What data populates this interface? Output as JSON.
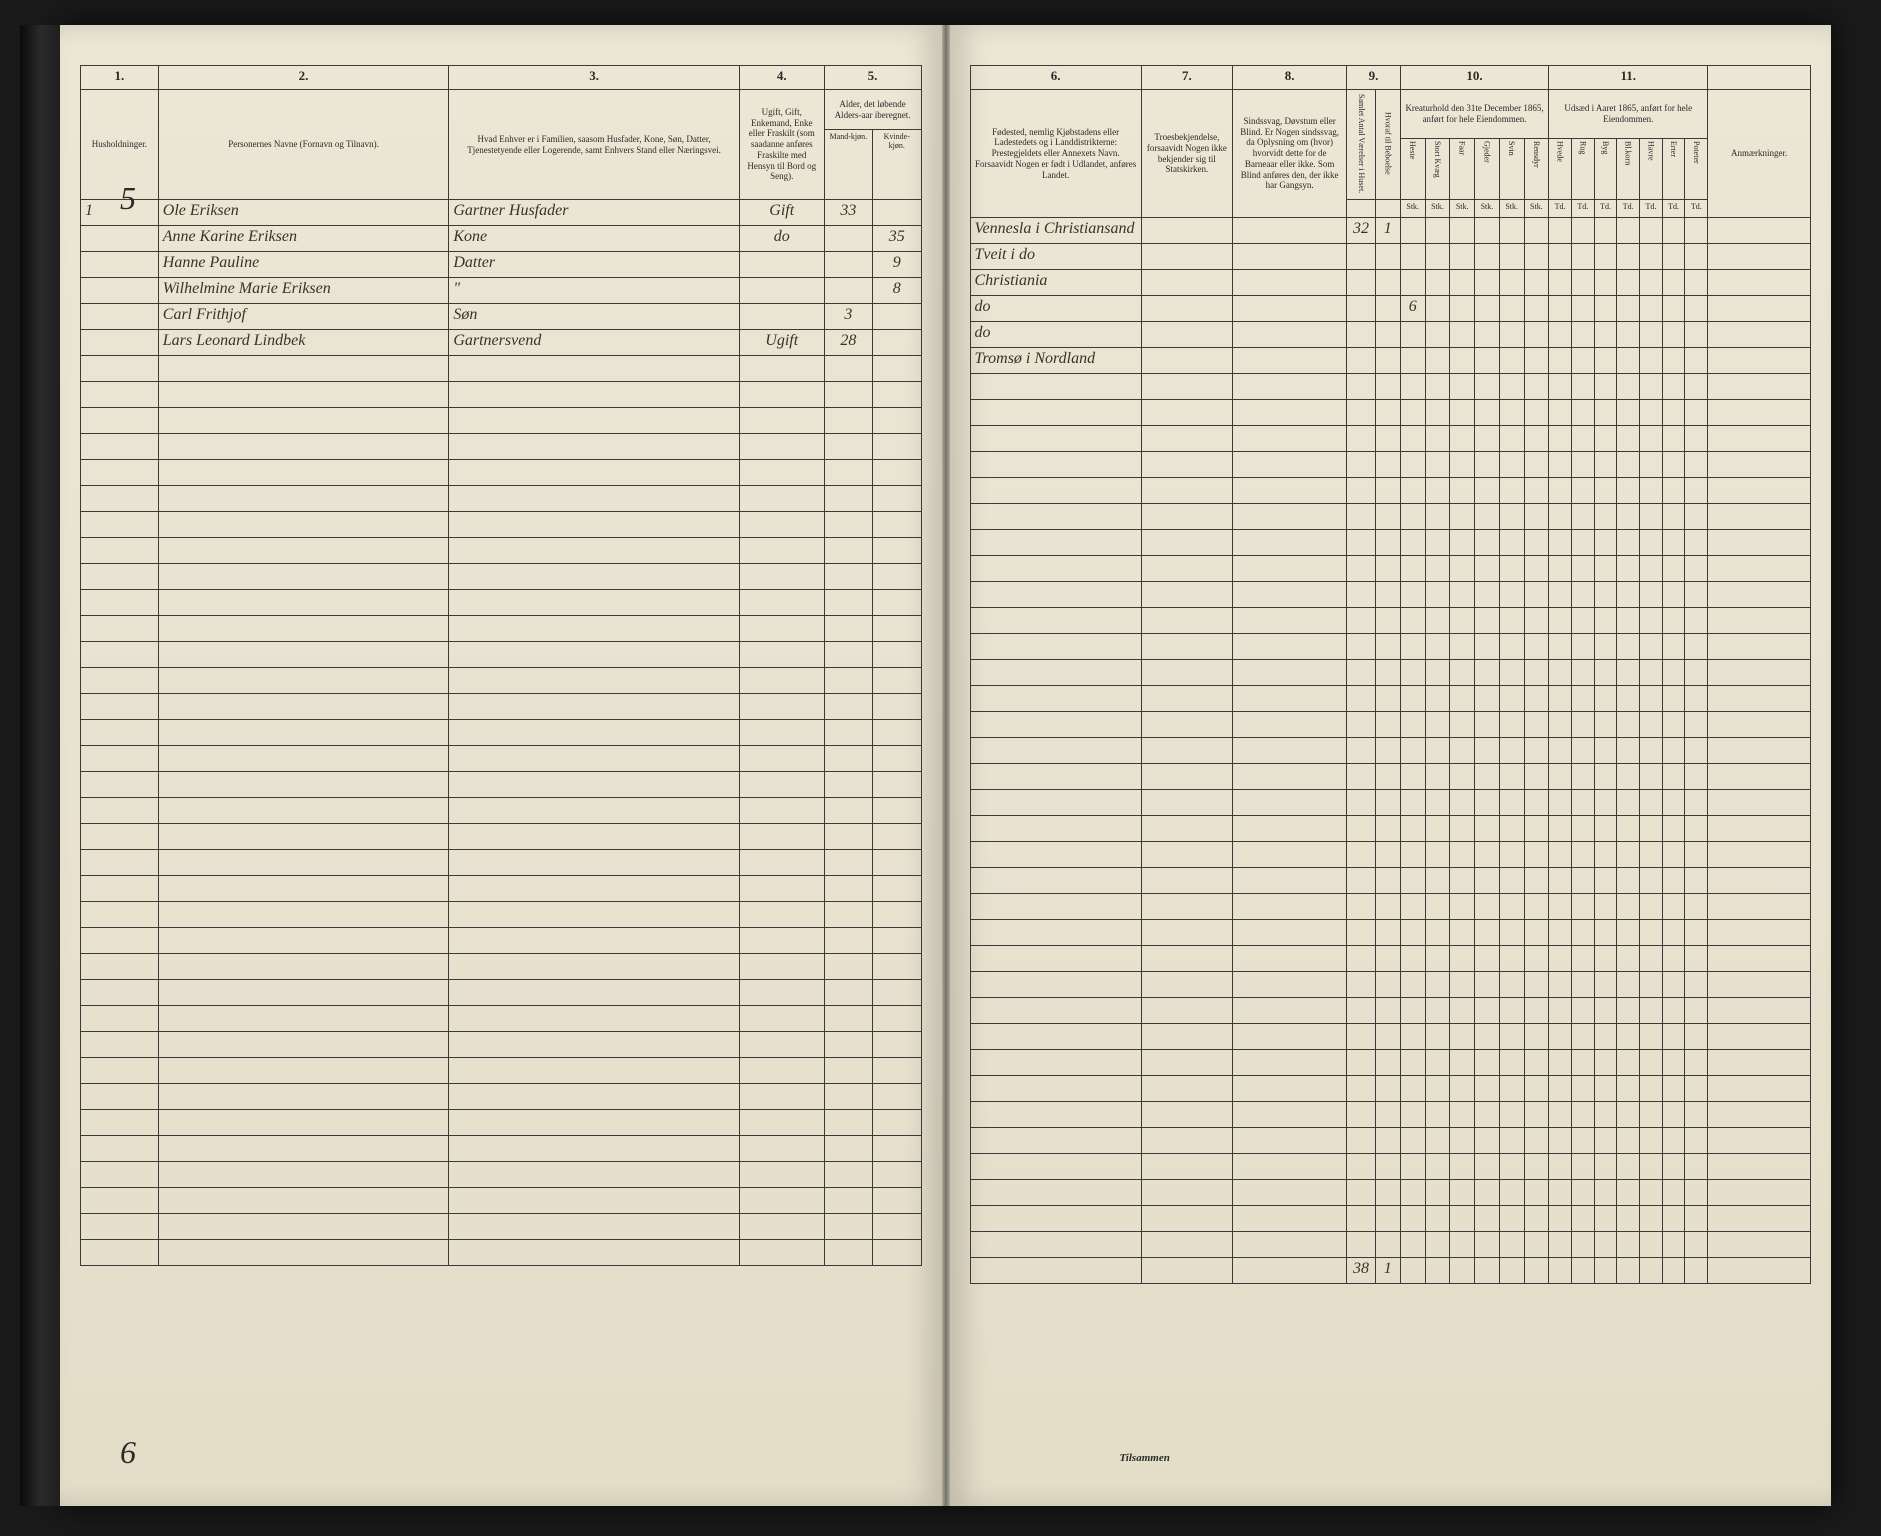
{
  "left_page": {
    "col_numbers": [
      "1.",
      "2.",
      "3.",
      "4.",
      "5."
    ],
    "headers": {
      "c1": "Husholdninger.",
      "c2": "Personernes Navne (Fornavn og Tilnavn).",
      "c3": "Hvad Enhver er i Familien, saasom Husfader, Kone, Søn, Datter, Tjenestetyende eller Logerende, samt Enhvers Stand eller Næringsvei.",
      "c4": "Ugift, Gift, Enkemand, Enke eller Fraskilt (som saadanne anføres Fraskilte med Hensyn til Bord og Seng).",
      "c5": "Alder, det løbende Alders-aar iberegnet.",
      "c5a": "Mand-kjøn.",
      "c5b": "Kvinde-kjøn."
    },
    "corner_top": "5",
    "corner_bottom": "6",
    "rows": [
      {
        "hh": "1",
        "name": "Ole Eriksen",
        "rel": "Gartner Husfader",
        "stat": "Gift",
        "m": "33",
        "f": ""
      },
      {
        "hh": "",
        "name": "Anne Karine Eriksen",
        "rel": "Kone",
        "stat": "do",
        "m": "",
        "f": "35"
      },
      {
        "hh": "",
        "name": "Hanne Pauline",
        "rel": "Datter",
        "stat": "",
        "m": "",
        "f": "9"
      },
      {
        "hh": "",
        "name": "Wilhelmine Marie Eriksen",
        "rel": "\"",
        "stat": "",
        "m": "",
        "f": "8"
      },
      {
        "hh": "",
        "name": "Carl Frithjof",
        "rel": "Søn",
        "stat": "",
        "m": "3",
        "f": ""
      },
      {
        "hh": "",
        "name": "Lars Leonard Lindbek",
        "rel": "Gartnersvend",
        "stat": "Ugift",
        "m": "28",
        "f": ""
      }
    ]
  },
  "right_page": {
    "col_numbers": [
      "6.",
      "7.",
      "8.",
      "9.",
      "10.",
      "11."
    ],
    "headers": {
      "c6": "Fødested, nemlig Kjøbstadens eller Ladestedets og i Landdistrikterne: Prestegjeldets eller Annexets Navn. Forsaavidt Nogen er født i Udlandet, anføres Landet.",
      "c7": "Troesbekjendelse, forsaavidt Nogen ikke bekjender sig til Statskirken.",
      "c8": "Sindssvag, Døvstum eller Blind. Er Nogen sindssvag, da Oplysning om (hvor) hvorvidt dette for de Barneaar eller ikke. Som Blind anføres den, der ikke har Gangsyn.",
      "c9a": "Samlet Antal Værelser i Huset.",
      "c9b": "Hvoraf til Beboelse",
      "c10": "Kreaturhold den 31te December 1865, anført for hele Eiendommen.",
      "c10_sub": [
        "Heste",
        "Stort Kvæg",
        "Faar",
        "Gjeder",
        "Svin",
        "Rensdyr"
      ],
      "c11": "Udsæd i Aaret 1865, anført for hele Eiendommen.",
      "c11_sub": [
        "Hvede",
        "Rug",
        "Byg",
        "Bl.korn",
        "Havre",
        "Erter",
        "Poteter"
      ],
      "anm": "Anmærkninger.",
      "unit": "Stk.",
      "unit2": "Td."
    },
    "rows": [
      {
        "birth": "Vennesla i Christiansand",
        "c9a": "32",
        "c9b": "1"
      },
      {
        "birth": "Tveit i do"
      },
      {
        "birth": "Christiania"
      },
      {
        "birth": "do",
        "c9a": "",
        "c9b": "",
        "heste": "6"
      },
      {
        "birth": "do"
      },
      {
        "birth": "Tromsø i Nordland"
      }
    ],
    "totals_label": "Tilsammen",
    "totals": {
      "c9a": "38",
      "c9b": "1"
    }
  },
  "empty_rows": 35
}
